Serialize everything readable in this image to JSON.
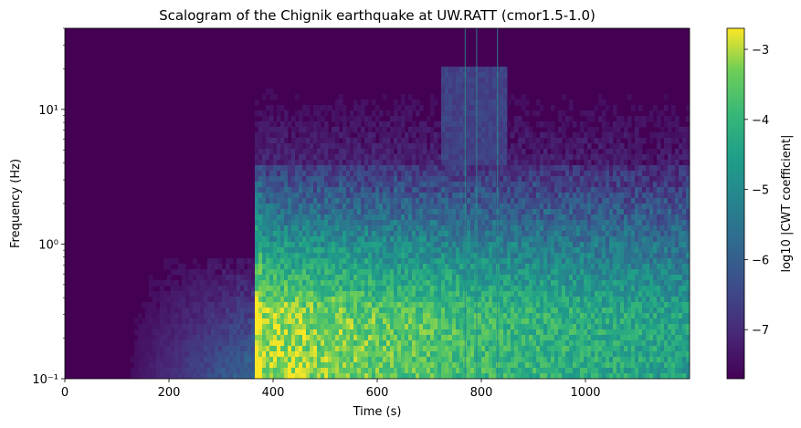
{
  "chart_data": {
    "type": "heatmap",
    "title": "Scalogram of the Chignik earthquake at UW.RATT (cmor1.5-1.0)",
    "xlabel": "Time (s)",
    "ylabel": "Frequency (Hz)",
    "xlim": [
      0,
      1200
    ],
    "ylim": [
      0.1,
      40
    ],
    "yscale": "log",
    "x_ticks": [
      0,
      200,
      400,
      600,
      800,
      1000
    ],
    "x_tick_labels": [
      "0",
      "200",
      "400",
      "600",
      "800",
      "1000"
    ],
    "y_ticks": [
      0.1,
      1,
      10
    ],
    "y_tick_labels": [
      "10⁻¹",
      "10⁰",
      "10¹"
    ],
    "colormap": "viridis",
    "colorbar": {
      "label": "log10 |CWT coefficient|",
      "range": [
        -7.7,
        -2.7
      ],
      "ticks": [
        -3,
        -4,
        -5,
        -6,
        -7
      ],
      "tick_labels": [
        "−3",
        "−4",
        "−5",
        "−6",
        "−7"
      ]
    },
    "features": {
      "onset_time_s": 365,
      "pre_event_noise_start_s": 100,
      "vertical_streaks_s": [
        768,
        790,
        830
      ],
      "max_energy_band_hz": [
        0.1,
        0.3
      ]
    }
  }
}
